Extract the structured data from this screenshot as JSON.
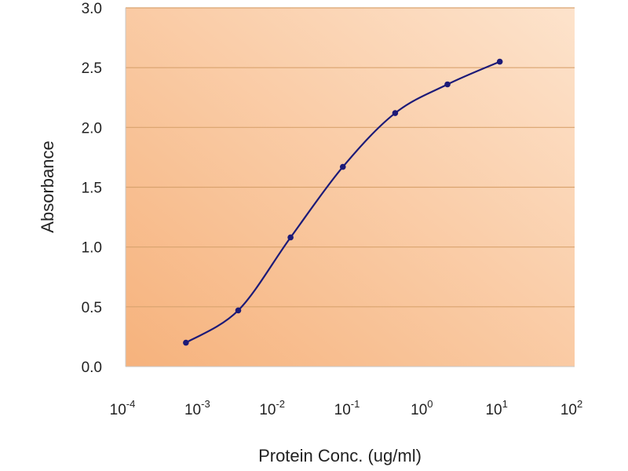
{
  "chart_data": {
    "type": "line",
    "title": "",
    "xlabel": "Protein Conc. (ug/ml)",
    "ylabel": "Absorbance",
    "xscale": "log",
    "xlim": [
      0.0001,
      100
    ],
    "ylim": [
      0,
      3.0
    ],
    "grid": "horizontal",
    "y_ticks": [
      0.0,
      0.5,
      1.0,
      1.5,
      2.0,
      2.5,
      3.0
    ],
    "y_tick_labels": [
      "0.0",
      "0.5",
      "1.0",
      "1.5",
      "2.0",
      "2.5",
      "3.0"
    ],
    "x_ticks": [
      -4,
      -3,
      -2,
      -1,
      0,
      1,
      2
    ],
    "x_tick_labels": [
      {
        "base": "10",
        "exp": "-4"
      },
      {
        "base": "10",
        "exp": "-3"
      },
      {
        "base": "10",
        "exp": "-2"
      },
      {
        "base": "10",
        "exp": "-1"
      },
      {
        "base": "10",
        "exp": "0"
      },
      {
        "base": "10",
        "exp": "1"
      },
      {
        "base": "10",
        "exp": "2"
      }
    ],
    "series": [
      {
        "name": "Absorbance",
        "color": "#1c1a78",
        "x": [
          0.00064,
          0.0032,
          0.016,
          0.08,
          0.4,
          2,
          10
        ],
        "y": [
          0.2,
          0.47,
          1.08,
          1.67,
          2.12,
          2.36,
          2.55
        ]
      }
    ],
    "colors": {
      "bg_dark": "#f6b27c",
      "bg_light": "#fde3cc",
      "grid": "#d9a36f"
    }
  }
}
